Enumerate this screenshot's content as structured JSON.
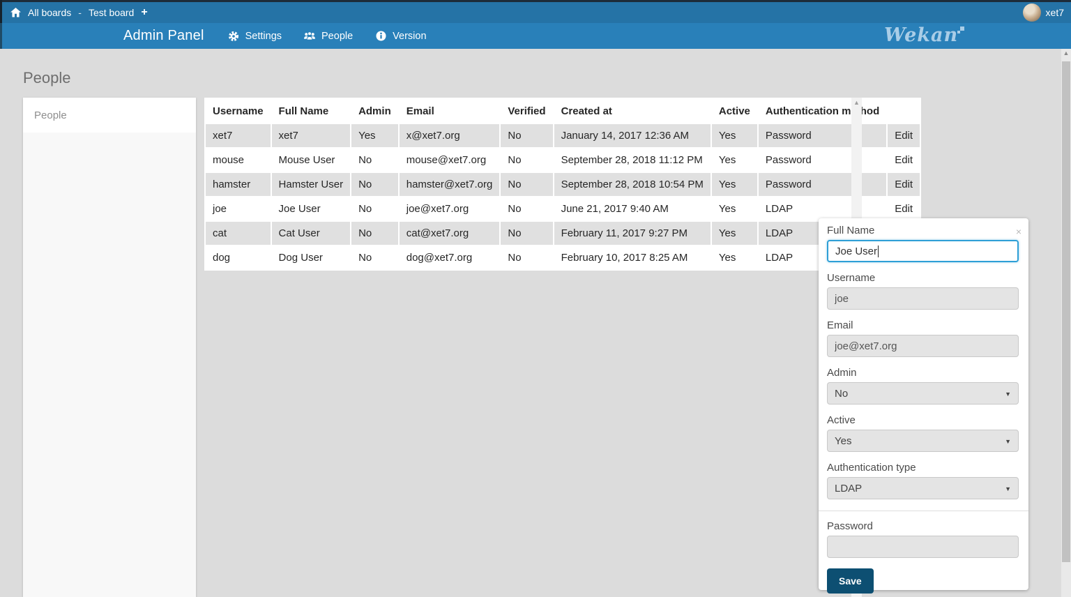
{
  "topbar": {
    "breadcrumb": {
      "all_boards": "All boards",
      "separator": "-",
      "board_name": "Test board",
      "add": "+"
    },
    "user": {
      "name": "xet7"
    }
  },
  "navbar": {
    "title": "Admin Panel",
    "items": [
      {
        "icon": "gear-icon",
        "label": "Settings"
      },
      {
        "icon": "people-icon",
        "label": "People"
      },
      {
        "icon": "info-icon",
        "label": "Version"
      }
    ],
    "logo_text": "Wekan"
  },
  "page": {
    "heading": "People"
  },
  "sidebar": {
    "items": [
      {
        "label": "People",
        "active": true
      }
    ]
  },
  "table": {
    "headers": [
      "Username",
      "Full Name",
      "Admin",
      "Email",
      "Verified",
      "Created at",
      "Active",
      "Authentication method",
      ""
    ],
    "edit_label": "Edit",
    "rows": [
      [
        "xet7",
        "xet7",
        "Yes",
        "x@xet7.org",
        "No",
        "January 14, 2017 12:36 AM",
        "Yes",
        "Password"
      ],
      [
        "mouse",
        "Mouse User",
        "No",
        "mouse@xet7.org",
        "No",
        "September 28, 2018 11:12 PM",
        "Yes",
        "Password"
      ],
      [
        "hamster",
        "Hamster User",
        "No",
        "hamster@xet7.org",
        "No",
        "September 28, 2018 10:54 PM",
        "Yes",
        "Password"
      ],
      [
        "joe",
        "Joe User",
        "No",
        "joe@xet7.org",
        "No",
        "June 21, 2017 9:40 AM",
        "Yes",
        "LDAP"
      ],
      [
        "cat",
        "Cat User",
        "No",
        "cat@xet7.org",
        "No",
        "February 11, 2017 9:27 PM",
        "Yes",
        "LDAP"
      ],
      [
        "dog",
        "Dog User",
        "No",
        "dog@xet7.org",
        "No",
        "February 10, 2017 8:25 AM",
        "Yes",
        "LDAP"
      ]
    ]
  },
  "panel": {
    "close": "×",
    "full_name": {
      "label": "Full Name",
      "value": "Joe User"
    },
    "username": {
      "label": "Username",
      "value": "joe"
    },
    "email": {
      "label": "Email",
      "value": "joe@xet7.org"
    },
    "admin": {
      "label": "Admin",
      "value": "No"
    },
    "active": {
      "label": "Active",
      "value": "Yes"
    },
    "auth_type": {
      "label": "Authentication type",
      "value": "LDAP"
    },
    "password": {
      "label": "Password",
      "value": ""
    },
    "save_label": "Save"
  },
  "colors": {
    "topbar": "#2573a6",
    "navbar": "#2980b9",
    "background": "#dcdcdc",
    "row_stripe": "#e0e0e0",
    "save_button": "#0d4f72",
    "focus_border": "#2e9fd6"
  }
}
